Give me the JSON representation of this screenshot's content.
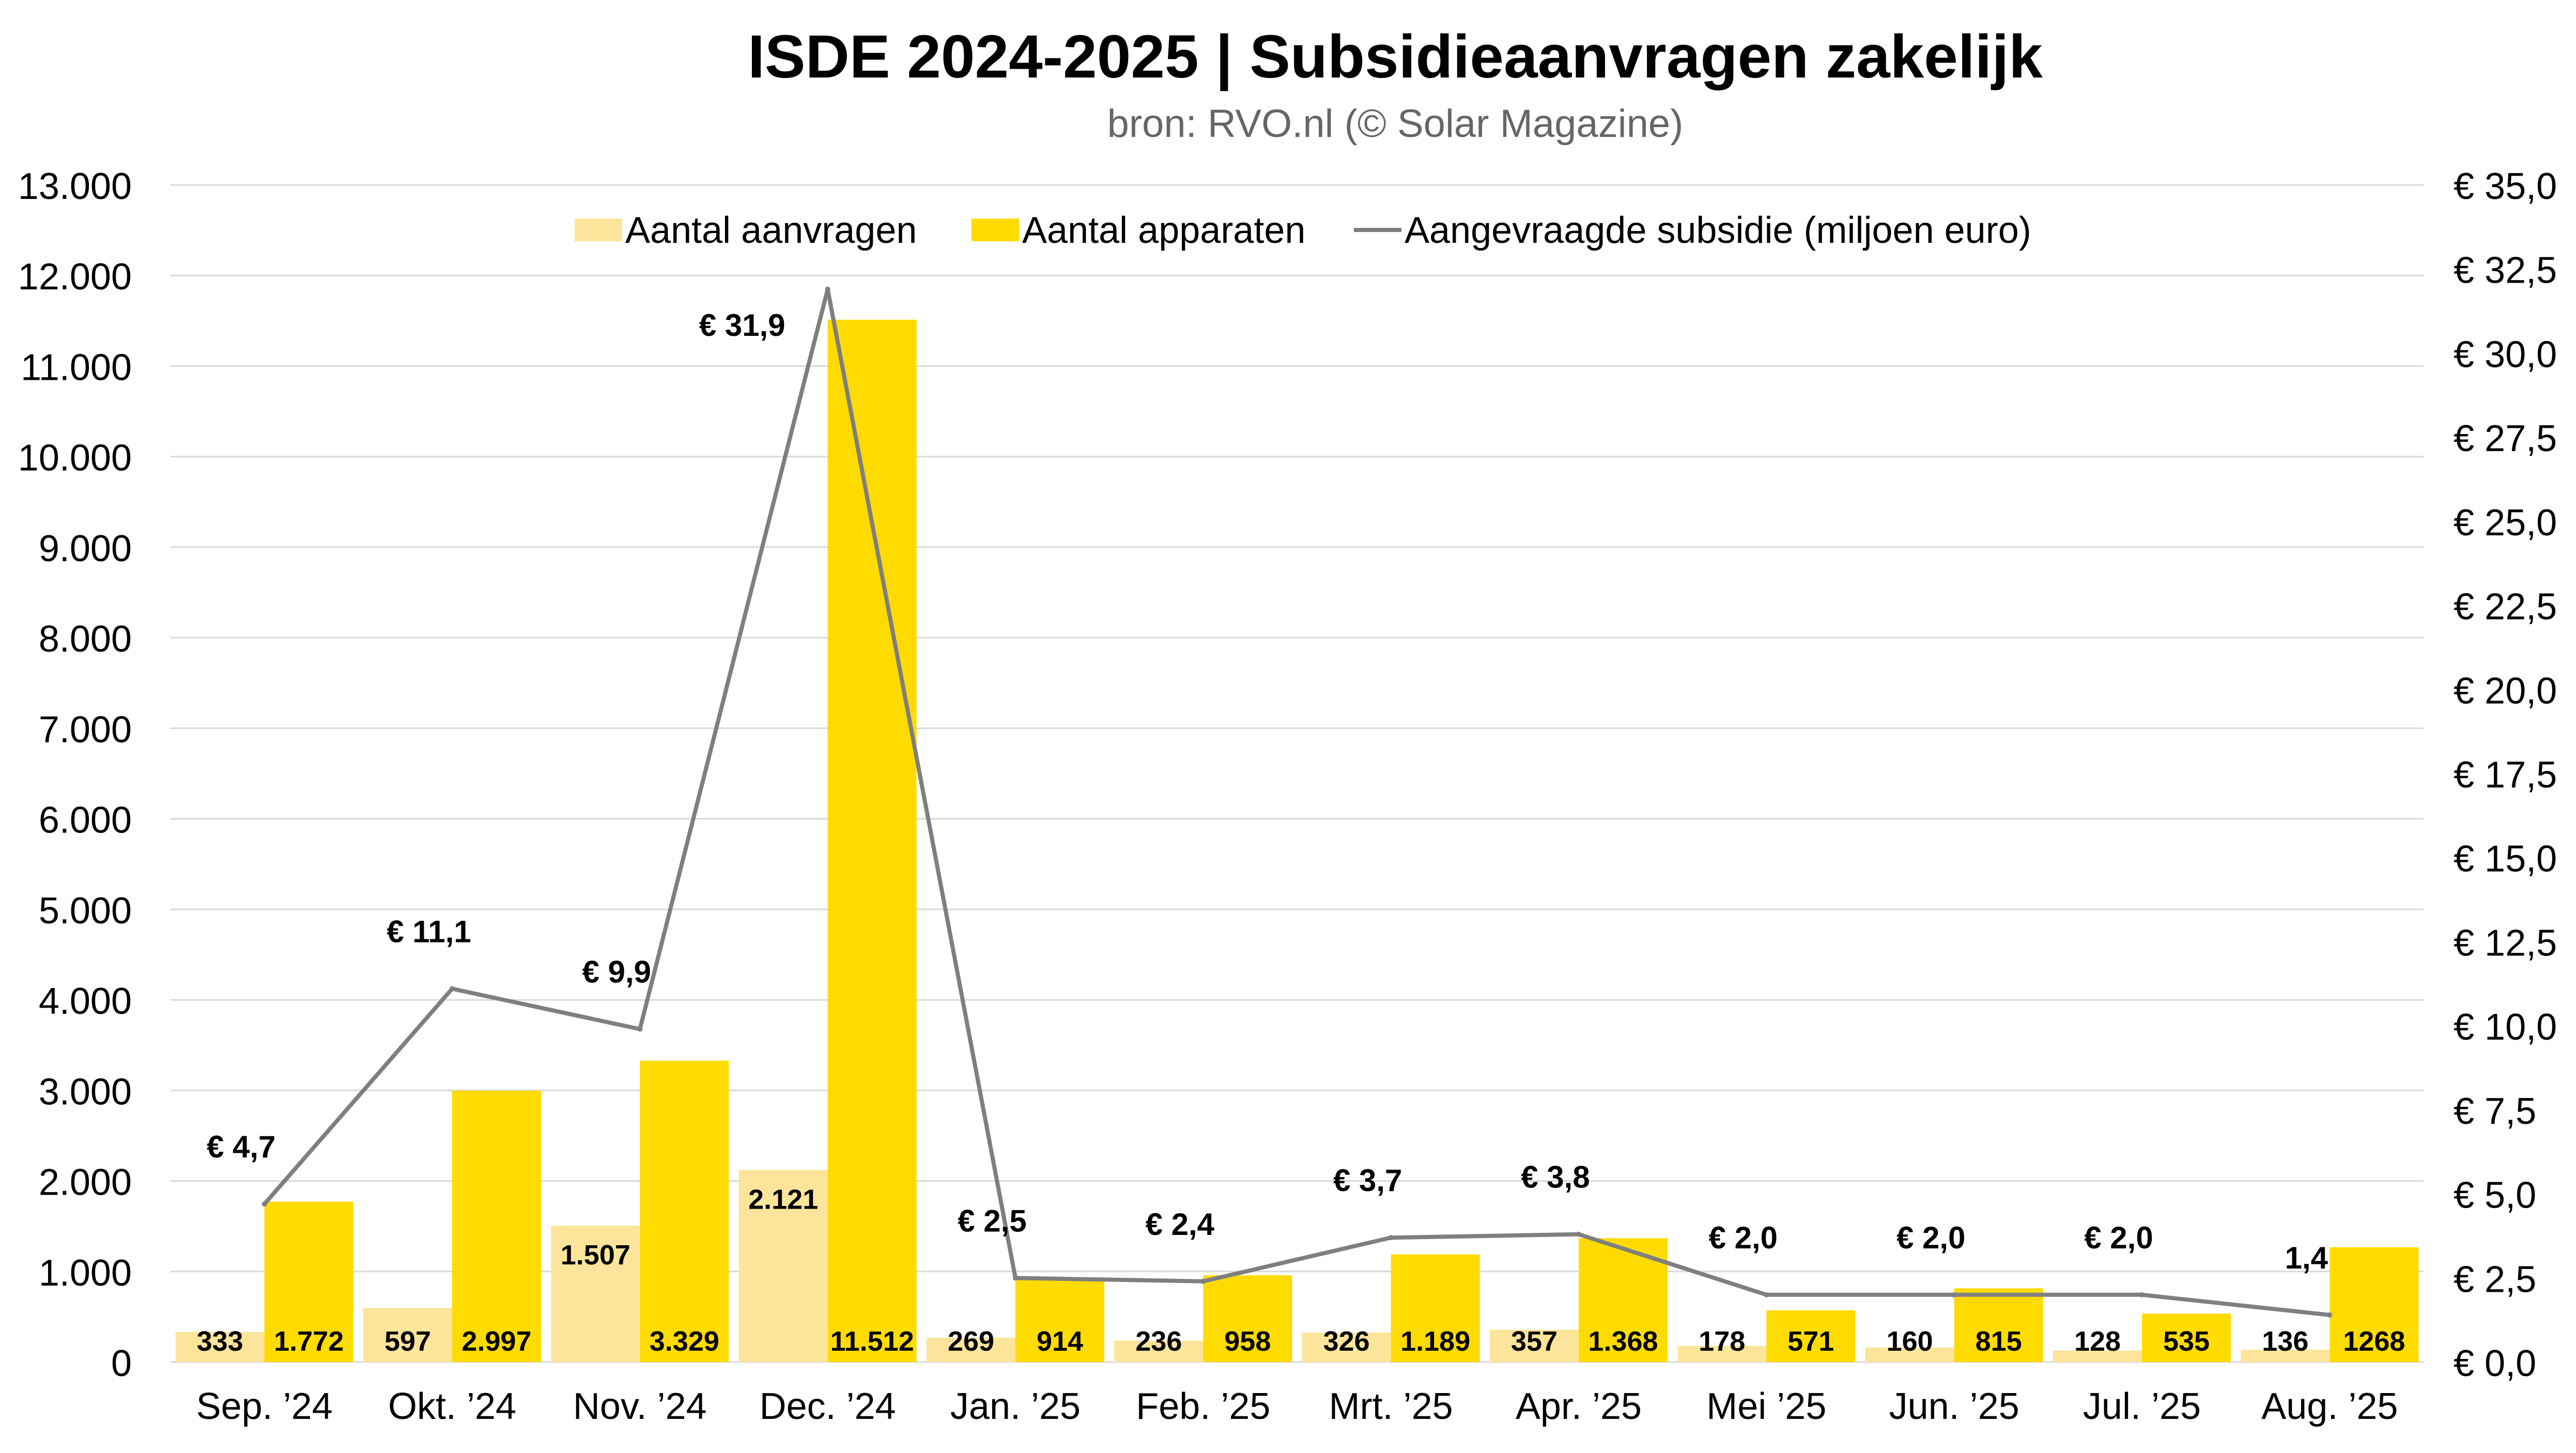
{
  "chart_data": {
    "type": "bar",
    "title": "ISDE 2024-2025 | Subsidieaanvragen zakelijk",
    "subtitle": "bron: RVO.nl (© Solar Magazine)",
    "categories": [
      "Sep. ’24",
      "Okt. ’24",
      "Nov. ’24",
      "Dec. ’24",
      "Jan. ’25",
      "Feb. ’25",
      "Mrt. ’25",
      "Apr. ’25",
      "Mei ’25",
      "Jun. ’25",
      "Jul. ’25",
      "Aug. ’25"
    ],
    "series": [
      {
        "name": "Aantal aanvragen",
        "type": "bar",
        "axis": "left",
        "color": "#FCE59A",
        "values": [
          333,
          597,
          1507,
          2121,
          269,
          236,
          326,
          357,
          178,
          160,
          128,
          136
        ],
        "labels": [
          "333",
          "597",
          "1.507",
          "2.121",
          "269",
          "236",
          "326",
          "357",
          "178",
          "160",
          "128",
          "136"
        ]
      },
      {
        "name": "Aantal apparaten",
        "type": "bar",
        "axis": "left",
        "color": "#FFDB00",
        "values": [
          1772,
          2997,
          3329,
          11512,
          914,
          958,
          1189,
          1368,
          571,
          815,
          535,
          1268
        ],
        "labels": [
          "1.772",
          "2.997",
          "3.329",
          "11.512",
          "914",
          "958",
          "1.189",
          "1.368",
          "571",
          "815",
          "535",
          "1268"
        ]
      },
      {
        "name": "Aangevraagde subsidie (miljoen euro)",
        "type": "line",
        "axis": "right",
        "color": "#7F7F7F",
        "values": [
          4.7,
          11.1,
          9.9,
          31.9,
          2.5,
          2.4,
          3.7,
          3.8,
          2.0,
          2.0,
          2.0,
          1.4
        ],
        "labels": [
          "€ 4,7",
          "€ 11,1",
          "€ 9,9",
          "€ 31,9",
          "€ 2,5",
          "€ 2,4",
          "€ 3,7",
          "€ 3,8",
          "€ 2,0",
          "€ 2,0",
          "€ 2,0",
          "1,4"
        ]
      }
    ],
    "y_left": {
      "min": 0,
      "max": 13000,
      "ticks": [
        0,
        1000,
        2000,
        3000,
        4000,
        5000,
        6000,
        7000,
        8000,
        9000,
        10000,
        11000,
        12000,
        13000
      ],
      "tick_labels": [
        "0",
        "1.000",
        "2.000",
        "3.000",
        "4.000",
        "5.000",
        "6.000",
        "7.000",
        "8.000",
        "9.000",
        "10.000",
        "11.000",
        "12.000",
        "13.000"
      ]
    },
    "y_right": {
      "min": 0,
      "max": 35,
      "ticks": [
        0,
        2.5,
        5,
        7.5,
        10,
        12.5,
        15,
        17.5,
        20,
        22.5,
        25,
        27.5,
        30,
        32.5,
        35
      ],
      "tick_labels": [
        "€ 0,0",
        "€ 2,5",
        "€ 5,0",
        "€ 7,5",
        "€ 10,0",
        "€ 12,5",
        "€ 15,0",
        "€ 17,5",
        "€ 20,0",
        "€ 22,5",
        "€ 25,0",
        "€ 27,5",
        "€ 30,0",
        "€ 32,5",
        "€ 35,0"
      ]
    },
    "grid": true,
    "legend": "top"
  }
}
